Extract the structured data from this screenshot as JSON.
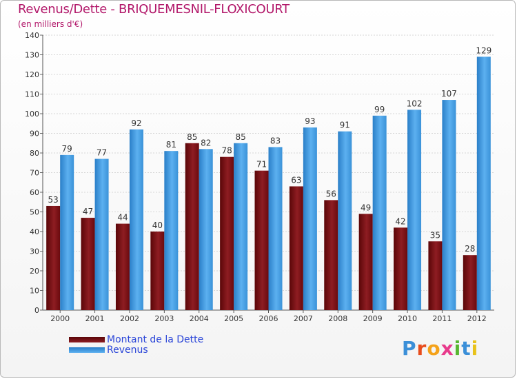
{
  "colors": {
    "dette": "#7a0f14",
    "revenus": "#3e9be0",
    "title": "#b2186a",
    "legend_text": "#2a45d8"
  },
  "logo": {
    "text": "Proxiti",
    "letters": [
      "P",
      "r",
      "o",
      "x",
      "i",
      "t",
      "i"
    ],
    "letter_colors": [
      "#3b8fd8",
      "#e84c1c",
      "#f4a21a",
      "#e83a8c",
      "#58b630",
      "#3b8fd8",
      "#e8c21a"
    ]
  },
  "chart_data": {
    "type": "bar",
    "title": "Revenus/Dette - BRIQUEMESNIL-FLOXICOURT",
    "subtitle": "(en milliers d'€)",
    "categories": [
      "2000",
      "2001",
      "2002",
      "2003",
      "2004",
      "2005",
      "2006",
      "2007",
      "2008",
      "2009",
      "2010",
      "2011",
      "2012"
    ],
    "series": [
      {
        "name": "Montant de la Dette",
        "values": [
          53,
          47,
          44,
          40,
          85,
          78,
          71,
          63,
          56,
          49,
          42,
          35,
          28
        ]
      },
      {
        "name": "Revenus",
        "values": [
          79,
          77,
          92,
          81,
          82,
          85,
          83,
          93,
          91,
          99,
          102,
          107,
          129
        ]
      }
    ],
    "ylim": [
      0,
      140
    ],
    "yticks": [
      0,
      10,
      20,
      30,
      40,
      50,
      60,
      70,
      80,
      90,
      100,
      110,
      120,
      130,
      140
    ],
    "grid": true,
    "legend": "bottom-left"
  }
}
